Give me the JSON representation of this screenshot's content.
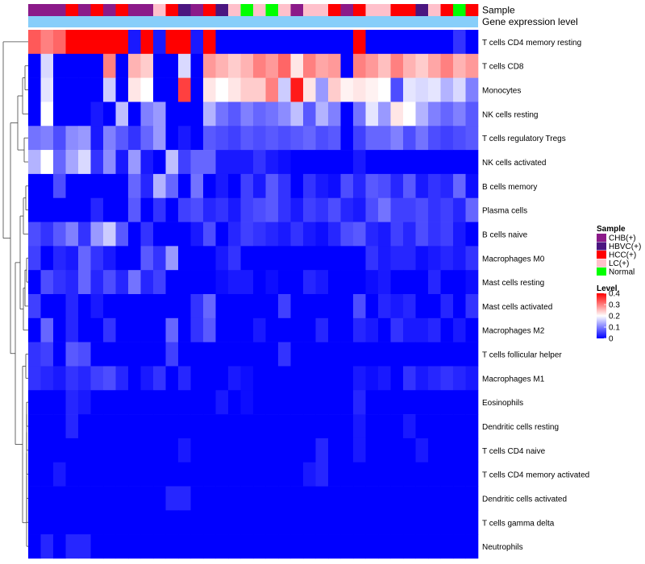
{
  "chart_data": {
    "type": "heatmap",
    "annotation_rows": [
      "Sample",
      "Gene expression level"
    ],
    "row_labels": [
      "T cells CD4 memory resting",
      "T cells CD8",
      "Monocytes",
      "NK cells resting",
      "T cells regulatory  Tregs",
      "NK cells activated",
      "B cells memory",
      "Plasma cells",
      "B cells naive",
      "Macrophages M0",
      "Mast cells resting",
      "Mast cells activated",
      "Macrophages M2",
      "T cells follicular helper",
      "Macrophages M1",
      "Eosinophils",
      "Dendritic cells resting",
      "T cells CD4 naive",
      "T cells CD4 memory activated",
      "Dendritic cells activated",
      "T cells gamma delta",
      "Neutrophils"
    ],
    "sample_groups": [
      "CHB",
      "CHB",
      "CHB",
      "HCC",
      "CHB",
      "HCC",
      "CHB",
      "HCC",
      "CHB",
      "CHB",
      "LC",
      "HCC",
      "HBVC",
      "CHB",
      "HCC",
      "HBVC",
      "LC",
      "Normal",
      "LC",
      "Normal",
      "LC",
      "CHB",
      "LC",
      "LC",
      "HCC",
      "CHB",
      "HCC",
      "LC",
      "LC",
      "HCC",
      "HCC",
      "HBVC",
      "LC",
      "HCC",
      "Normal",
      "HCC"
    ],
    "expression_level_bar": "all samples same level",
    "values": [
      [
        0.33,
        0.3,
        0.32,
        0.4,
        0.4,
        0.4,
        0.4,
        0.4,
        0.02,
        0.4,
        0.02,
        0.4,
        0.4,
        0.02,
        0.4,
        0.0,
        0.0,
        0.0,
        0.0,
        0.0,
        0.0,
        0.0,
        0.0,
        0.0,
        0.0,
        0.0,
        0.4,
        0.0,
        0.0,
        0.0,
        0.0,
        0.0,
        0.0,
        0.0,
        0.04,
        0.0
      ],
      [
        0.0,
        0.17,
        0.0,
        0.0,
        0.0,
        0.0,
        0.3,
        0.0,
        0.26,
        0.24,
        0.0,
        0.0,
        0.17,
        0.0,
        0.28,
        0.26,
        0.24,
        0.26,
        0.3,
        0.28,
        0.32,
        0.22,
        0.3,
        0.27,
        0.28,
        0.0,
        0.3,
        0.28,
        0.25,
        0.3,
        0.26,
        0.24,
        0.27,
        0.3,
        0.26,
        0.28
      ],
      [
        0.0,
        0.18,
        0.0,
        0.0,
        0.0,
        0.0,
        0.16,
        0.0,
        0.22,
        0.2,
        0.0,
        0.0,
        0.35,
        0.0,
        0.22,
        0.2,
        0.22,
        0.24,
        0.24,
        0.3,
        0.16,
        0.38,
        0.22,
        0.12,
        0.24,
        0.21,
        0.22,
        0.21,
        0.2,
        0.06,
        0.18,
        0.17,
        0.18,
        0.14,
        0.17,
        0.1
      ],
      [
        0.0,
        0.2,
        0.0,
        0.0,
        0.0,
        0.02,
        0.0,
        0.15,
        0.0,
        0.1,
        0.12,
        0.0,
        0.0,
        0.0,
        0.14,
        0.09,
        0.07,
        0.1,
        0.08,
        0.09,
        0.11,
        0.15,
        0.07,
        0.14,
        0.1,
        0.0,
        0.09,
        0.18,
        0.12,
        0.22,
        0.2,
        0.14,
        0.1,
        0.08,
        0.1,
        0.07
      ],
      [
        0.09,
        0.1,
        0.06,
        0.11,
        0.12,
        0.02,
        0.1,
        0.07,
        0.04,
        0.08,
        0.12,
        0.0,
        0.02,
        0.0,
        0.07,
        0.06,
        0.05,
        0.07,
        0.06,
        0.07,
        0.06,
        0.07,
        0.08,
        0.06,
        0.07,
        0.0,
        0.05,
        0.08,
        0.08,
        0.1,
        0.06,
        0.09,
        0.06,
        0.05,
        0.06,
        0.07
      ],
      [
        0.14,
        0.2,
        0.08,
        0.13,
        0.17,
        0.04,
        0.11,
        0.02,
        0.12,
        0.02,
        0.0,
        0.15,
        0.05,
        0.08,
        0.08,
        0.02,
        0.02,
        0.02,
        0.04,
        0.02,
        0.01,
        0.0,
        0.0,
        0.0,
        0.0,
        0.0,
        0.02,
        0.0,
        0.0,
        0.0,
        0.0,
        0.0,
        0.0,
        0.0,
        0.0,
        0.0
      ],
      [
        0.0,
        0.0,
        0.06,
        0.0,
        0.0,
        0.0,
        0.0,
        0.0,
        0.08,
        0.03,
        0.14,
        0.08,
        0.0,
        0.09,
        0.0,
        0.02,
        0.0,
        0.05,
        0.02,
        0.07,
        0.04,
        0.0,
        0.04,
        0.02,
        0.01,
        0.06,
        0.03,
        0.07,
        0.06,
        0.03,
        0.07,
        0.02,
        0.04,
        0.03,
        0.08,
        0.01
      ],
      [
        0.0,
        0.0,
        0.0,
        0.0,
        0.0,
        0.03,
        0.0,
        0.0,
        0.07,
        0.0,
        0.04,
        0.0,
        0.05,
        0.06,
        0.03,
        0.04,
        0.02,
        0.05,
        0.06,
        0.07,
        0.04,
        0.02,
        0.05,
        0.04,
        0.06,
        0.03,
        0.02,
        0.06,
        0.09,
        0.05,
        0.05,
        0.06,
        0.04,
        0.05,
        0.03,
        0.08
      ],
      [
        0.06,
        0.04,
        0.07,
        0.1,
        0.04,
        0.12,
        0.16,
        0.07,
        0.0,
        0.04,
        0.0,
        0.0,
        0.0,
        0.02,
        0.06,
        0.0,
        0.03,
        0.05,
        0.04,
        0.03,
        0.02,
        0.04,
        0.02,
        0.01,
        0.03,
        0.06,
        0.07,
        0.03,
        0.02,
        0.05,
        0.03,
        0.06,
        0.04,
        0.05,
        0.02,
        0.0
      ],
      [
        0.05,
        0.0,
        0.03,
        0.02,
        0.08,
        0.04,
        0.02,
        0.0,
        0.0,
        0.07,
        0.04,
        0.12,
        0.0,
        0.0,
        0.0,
        0.02,
        0.04,
        0.0,
        0.0,
        0.0,
        0.0,
        0.0,
        0.0,
        0.0,
        0.0,
        0.0,
        0.0,
        0.04,
        0.02,
        0.03,
        0.03,
        0.01,
        0.02,
        0.03,
        0.02,
        0.04
      ],
      [
        0.0,
        0.06,
        0.04,
        0.03,
        0.08,
        0.03,
        0.06,
        0.03,
        0.09,
        0.03,
        0.05,
        0.0,
        0.0,
        0.0,
        0.0,
        0.01,
        0.02,
        0.02,
        0.0,
        0.01,
        0.0,
        0.0,
        0.03,
        0.02,
        0.0,
        0.0,
        0.0,
        0.01,
        0.02,
        0.0,
        0.0,
        0.0,
        0.03,
        0.0,
        0.0,
        0.01
      ],
      [
        0.05,
        0.0,
        0.0,
        0.03,
        0.0,
        0.02,
        0.0,
        0.0,
        0.0,
        0.0,
        0.0,
        0.0,
        0.0,
        0.04,
        0.08,
        0.0,
        0.0,
        0.0,
        0.0,
        0.0,
        0.05,
        0.0,
        0.0,
        0.0,
        0.0,
        0.0,
        0.06,
        0.0,
        0.03,
        0.02,
        0.03,
        0.0,
        0.0,
        0.03,
        0.0,
        0.04
      ],
      [
        0.0,
        0.08,
        0.0,
        0.03,
        0.0,
        0.0,
        0.04,
        0.0,
        0.0,
        0.0,
        0.0,
        0.08,
        0.0,
        0.04,
        0.07,
        0.0,
        0.0,
        0.0,
        0.02,
        0.0,
        0.0,
        0.0,
        0.0,
        0.03,
        0.0,
        0.0,
        0.03,
        0.02,
        0.0,
        0.04,
        0.02,
        0.02,
        0.03,
        0.0,
        0.02,
        0.0
      ],
      [
        0.04,
        0.05,
        0.0,
        0.07,
        0.06,
        0.0,
        0.0,
        0.0,
        0.0,
        0.0,
        0.0,
        0.05,
        0.0,
        0.0,
        0.0,
        0.0,
        0.0,
        0.0,
        0.0,
        0.0,
        0.04,
        0.0,
        0.0,
        0.0,
        0.0,
        0.0,
        0.0,
        0.0,
        0.0,
        0.0,
        0.0,
        0.0,
        0.0,
        0.0,
        0.0,
        0.0
      ],
      [
        0.04,
        0.03,
        0.02,
        0.04,
        0.03,
        0.05,
        0.06,
        0.03,
        0.0,
        0.02,
        0.04,
        0.0,
        0.03,
        0.0,
        0.0,
        0.0,
        0.02,
        0.01,
        0.0,
        0.0,
        0.0,
        0.0,
        0.0,
        0.0,
        0.0,
        0.0,
        0.02,
        0.01,
        0.02,
        0.0,
        0.04,
        0.02,
        0.03,
        0.04,
        0.03,
        0.02
      ],
      [
        0.0,
        0.0,
        0.0,
        0.03,
        0.02,
        0.0,
        0.0,
        0.0,
        0.0,
        0.0,
        0.0,
        0.0,
        0.0,
        0.0,
        0.0,
        0.02,
        0.0,
        0.01,
        0.0,
        0.0,
        0.0,
        0.0,
        0.0,
        0.0,
        0.0,
        0.0,
        0.03,
        0.0,
        0.0,
        0.0,
        0.0,
        0.0,
        0.0,
        0.0,
        0.0,
        0.0
      ],
      [
        0.0,
        0.0,
        0.0,
        0.03,
        0.0,
        0.0,
        0.0,
        0.0,
        0.0,
        0.0,
        0.0,
        0.0,
        0.0,
        0.0,
        0.0,
        0.0,
        0.0,
        0.0,
        0.0,
        0.0,
        0.0,
        0.0,
        0.0,
        0.0,
        0.0,
        0.0,
        0.02,
        0.0,
        0.0,
        0.0,
        0.02,
        0.0,
        0.0,
        0.0,
        0.0,
        0.0
      ],
      [
        0.0,
        0.0,
        0.0,
        0.0,
        0.0,
        0.0,
        0.0,
        0.0,
        0.0,
        0.0,
        0.0,
        0.0,
        0.02,
        0.0,
        0.0,
        0.0,
        0.0,
        0.0,
        0.0,
        0.0,
        0.0,
        0.0,
        0.0,
        0.03,
        0.0,
        0.0,
        0.02,
        0.0,
        0.0,
        0.0,
        0.0,
        0.02,
        0.0,
        0.0,
        0.0,
        0.0
      ],
      [
        0.0,
        0.0,
        0.02,
        0.0,
        0.0,
        0.0,
        0.0,
        0.0,
        0.0,
        0.0,
        0.0,
        0.0,
        0.0,
        0.0,
        0.0,
        0.0,
        0.0,
        0.0,
        0.0,
        0.0,
        0.0,
        0.0,
        0.02,
        0.03,
        0.0,
        0.0,
        0.0,
        0.0,
        0.0,
        0.0,
        0.0,
        0.0,
        0.0,
        0.0,
        0.0,
        0.0
      ],
      [
        0.0,
        0.0,
        0.0,
        0.0,
        0.0,
        0.0,
        0.0,
        0.0,
        0.0,
        0.0,
        0.0,
        0.03,
        0.03,
        0.0,
        0.0,
        0.0,
        0.0,
        0.0,
        0.0,
        0.0,
        0.0,
        0.0,
        0.0,
        0.0,
        0.0,
        0.0,
        0.0,
        0.0,
        0.0,
        0.0,
        0.0,
        0.0,
        0.0,
        0.0,
        0.0,
        0.0
      ],
      [
        0.0,
        0.0,
        0.0,
        0.0,
        0.0,
        0.0,
        0.0,
        0.0,
        0.0,
        0.0,
        0.0,
        0.0,
        0.0,
        0.0,
        0.0,
        0.0,
        0.0,
        0.0,
        0.0,
        0.0,
        0.0,
        0.0,
        0.0,
        0.0,
        0.0,
        0.0,
        0.0,
        0.0,
        0.0,
        0.0,
        0.0,
        0.0,
        0.0,
        0.0,
        0.0,
        0.0
      ],
      [
        0.0,
        0.03,
        0.0,
        0.03,
        0.03,
        0.0,
        0.0,
        0.0,
        0.0,
        0.0,
        0.0,
        0.0,
        0.0,
        0.0,
        0.0,
        0.0,
        0.0,
        0.0,
        0.0,
        0.0,
        0.0,
        0.0,
        0.0,
        0.0,
        0.0,
        0.0,
        0.0,
        0.0,
        0.0,
        0.0,
        0.0,
        0.0,
        0.0,
        0.0,
        0.0,
        0.0
      ]
    ],
    "legend": {
      "sample": {
        "title": "Sample",
        "entries": [
          {
            "key": "CHB",
            "label": "CHB(+)",
            "color": "#8B1A89"
          },
          {
            "key": "HBVC",
            "label": "HBVC(+)",
            "color": "#4B1680"
          },
          {
            "key": "HCC",
            "label": "HCC(+)",
            "color": "#FF0000"
          },
          {
            "key": "LC",
            "label": "LC(+)",
            "color": "#FFC0CB"
          },
          {
            "key": "Normal",
            "label": "Normal",
            "color": "#00FF00"
          }
        ]
      },
      "level": {
        "title": "Level",
        "ticks": [
          "0.4",
          "0.3",
          "0.2",
          "0.1",
          "0"
        ],
        "tick_values": [
          0.4,
          0.3,
          0.2,
          0.1,
          0
        ],
        "range": [
          0,
          0.4
        ]
      }
    },
    "expression_bar_color": "#87CEFA",
    "color_scale": {
      "low": "#0000FF",
      "mid": "#FFFFFF",
      "high": "#FF0000",
      "domain": [
        0,
        0.2,
        0.4
      ]
    }
  }
}
